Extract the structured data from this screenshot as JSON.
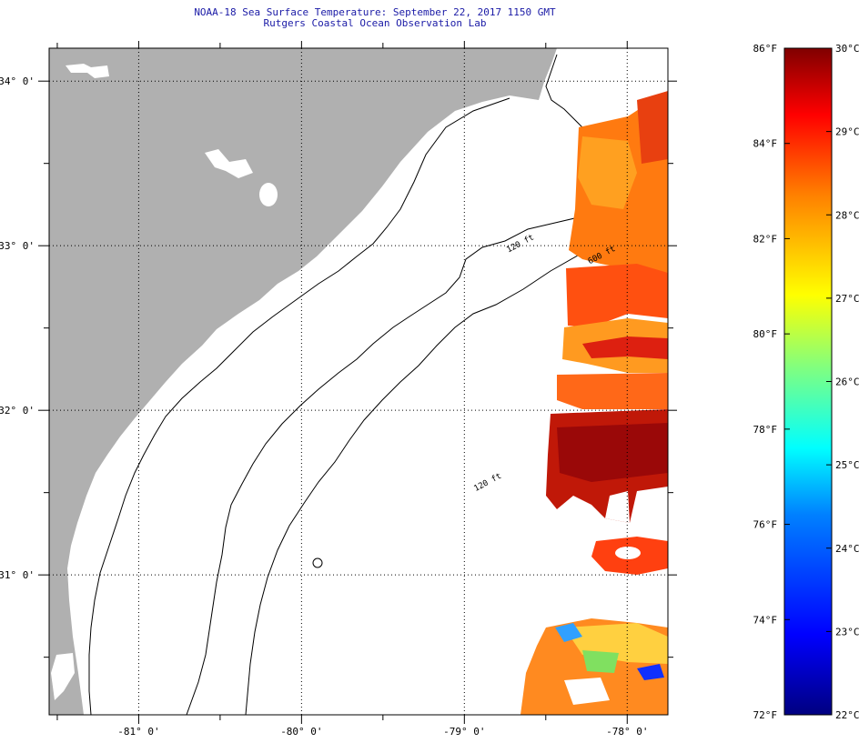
{
  "header": {
    "title": "NOAA-18 Sea Surface Temperature:  September 22, 2017 1150 GMT",
    "subtitle": "Rutgers Coastal Ocean Observation Lab"
  },
  "chart_data": {
    "type": "heatmap",
    "title": "NOAA-18 Sea Surface Temperature:  September 22, 2017 1150 GMT",
    "subtitle": "Rutgers Coastal Ocean Observation Lab",
    "x_ticks": [
      {
        "value": -81,
        "label": "-81° 0'"
      },
      {
        "value": -80,
        "label": "-80° 0'"
      },
      {
        "value": -79,
        "label": "-79° 0'"
      },
      {
        "value": -78,
        "label": "-78° 0'"
      }
    ],
    "y_ticks": [
      {
        "value": 34,
        "label": "34° 0'"
      },
      {
        "value": 33,
        "label": "33° 0'"
      },
      {
        "value": 32,
        "label": "32° 0'"
      },
      {
        "value": 31,
        "label": "31° 0'"
      }
    ],
    "xlim": [
      -81.55,
      -77.75
    ],
    "ylim": [
      30.15,
      34.2
    ],
    "grid": true,
    "isobath_labels": [
      {
        "text": "120 ft",
        "lon": -78.65,
        "lat": 33.0
      },
      {
        "text": "600 ft",
        "lon": -78.15,
        "lat": 32.93
      },
      {
        "text": "120 ft",
        "lon": -78.85,
        "lat": 31.55
      }
    ],
    "colorbar": {
      "min_c": 22,
      "max_c": 30,
      "min_f": 72,
      "max_f": 86,
      "f_ticks": [
        "72°F",
        "74°F",
        "76°F",
        "78°F",
        "80°F",
        "82°F",
        "84°F",
        "86°F"
      ],
      "c_ticks": [
        "22°C",
        "23°C",
        "24°C",
        "25°C",
        "26°C",
        "27°C",
        "28°C",
        "29°C",
        "30°C"
      ],
      "colors": [
        "#000080",
        "#0000ff",
        "#0080ff",
        "#00ffff",
        "#80ff80",
        "#ffff00",
        "#ff8000",
        "#ff0000",
        "#800000"
      ]
    },
    "colors": {
      "land": "#b0b0b0",
      "title": "#1a1aa6"
    }
  }
}
